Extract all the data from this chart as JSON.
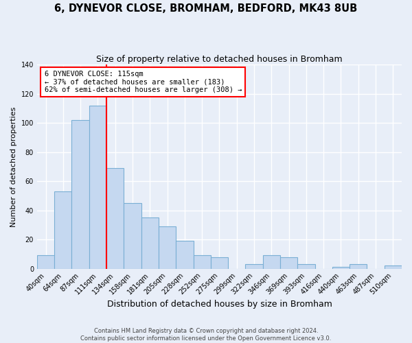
{
  "title": "6, DYNEVOR CLOSE, BROMHAM, BEDFORD, MK43 8UB",
  "subtitle": "Size of property relative to detached houses in Bromham",
  "xlabel": "Distribution of detached houses by size in Bromham",
  "ylabel": "Number of detached properties",
  "bar_color": "#c5d8f0",
  "bar_edgecolor": "#7aafd4",
  "background_color": "#e8eef8",
  "grid_color": "#ffffff",
  "categories": [
    "40sqm",
    "64sqm",
    "87sqm",
    "111sqm",
    "134sqm",
    "158sqm",
    "181sqm",
    "205sqm",
    "228sqm",
    "252sqm",
    "275sqm",
    "299sqm",
    "322sqm",
    "346sqm",
    "369sqm",
    "393sqm",
    "416sqm",
    "440sqm",
    "463sqm",
    "487sqm",
    "510sqm"
  ],
  "values": [
    9,
    53,
    102,
    112,
    69,
    45,
    35,
    29,
    19,
    9,
    8,
    0,
    3,
    9,
    8,
    3,
    0,
    1,
    3,
    0,
    2
  ],
  "ylim": [
    0,
    140
  ],
  "yticks": [
    0,
    20,
    40,
    60,
    80,
    100,
    120,
    140
  ],
  "marker_bin_index": 3,
  "annotation_lines": [
    "6 DYNEVOR CLOSE: 115sqm",
    "← 37% of detached houses are smaller (183)",
    "62% of semi-detached houses are larger (308) →"
  ],
  "footer_line1": "Contains HM Land Registry data © Crown copyright and database right 2024.",
  "footer_line2": "Contains public sector information licensed under the Open Government Licence v3.0."
}
